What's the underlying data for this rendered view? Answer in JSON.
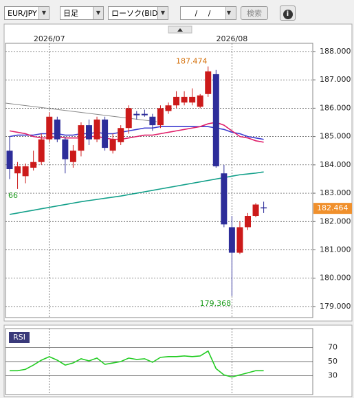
{
  "toolbar": {
    "symbol": "EUR/JPY",
    "period": "日足",
    "chart_type": "ローソク(BID)",
    "date": "/ /",
    "search": "検索",
    "info": "i"
  },
  "chart_data": [
    {
      "type": "candlestick",
      "categories": [
        null,
        null,
        null,
        null,
        null,
        "2026/07",
        null,
        null,
        null,
        null,
        null,
        null,
        null,
        null,
        null,
        null,
        null,
        null,
        null,
        null,
        null,
        null,
        null,
        null,
        null,
        null,
        null,
        null,
        "2026/08",
        null,
        null,
        null,
        null
      ],
      "open": [
        184.5,
        183.7,
        183.6,
        183.9,
        184.1,
        184.9,
        185.6,
        184.9,
        184.1,
        184.5,
        185.4,
        184.9,
        185.6,
        184.5,
        184.8,
        185.3,
        185.8,
        185.8,
        185.7,
        185.4,
        185.9,
        186.1,
        186.2,
        186.2,
        186.05,
        186.5,
        187.2,
        183.7,
        181.8,
        180.9,
        181.8,
        182.2,
        182.5
      ],
      "high": [
        185.0,
        184.1,
        184.05,
        184.5,
        185.1,
        185.85,
        185.7,
        185.0,
        184.7,
        185.5,
        185.6,
        185.7,
        185.7,
        185.1,
        185.4,
        186.1,
        185.9,
        185.95,
        185.8,
        186.1,
        186.2,
        186.6,
        186.6,
        186.7,
        186.5,
        187.474,
        187.35,
        184.0,
        182.2,
        182.0,
        182.3,
        182.65,
        182.7
      ],
      "low": [
        183.5,
        183.15,
        183.35,
        183.8,
        184.0,
        184.8,
        184.8,
        183.7,
        183.9,
        184.3,
        184.7,
        184.8,
        184.5,
        184.4,
        184.7,
        185.1,
        185.6,
        185.7,
        185.2,
        185.3,
        185.8,
        186.0,
        186.1,
        186.1,
        186.0,
        186.4,
        183.9,
        181.8,
        179.368,
        180.85,
        181.7,
        182.15,
        182.3
      ],
      "close": [
        183.85,
        183.95,
        183.95,
        184.1,
        184.9,
        185.7,
        184.9,
        184.2,
        184.5,
        185.4,
        184.9,
        185.6,
        184.6,
        184.9,
        185.3,
        186.0,
        185.75,
        185.75,
        185.4,
        186.0,
        186.1,
        186.4,
        186.4,
        186.4,
        186.45,
        187.3,
        183.95,
        181.9,
        180.9,
        181.8,
        182.2,
        182.6,
        182.464
      ],
      "up_color": "#cc1a1a",
      "down_color": "#2d2d9a",
      "overlays": [
        {
          "color": "#3c3cd0",
          "values": [
            185.0,
            185.05,
            185.05,
            185.05,
            185.1,
            185.1,
            185.1,
            185.05,
            185.05,
            185.1,
            185.1,
            185.15,
            185.1,
            185.1,
            185.15,
            185.2,
            185.25,
            185.3,
            185.3,
            185.35,
            185.35,
            185.35,
            185.35,
            185.35,
            185.35,
            185.35,
            185.3,
            185.25,
            185.15,
            185.1,
            185.0,
            184.95,
            184.9
          ]
        },
        {
          "color": "#e0206a",
          "values": [
            185.2,
            185.15,
            185.1,
            185.0,
            184.95,
            184.95,
            185.0,
            184.95,
            184.95,
            184.95,
            185.0,
            185.0,
            184.95,
            184.9,
            184.9,
            184.95,
            185.0,
            185.05,
            185.05,
            185.1,
            185.15,
            185.2,
            185.25,
            185.3,
            185.35,
            185.45,
            185.5,
            185.4,
            185.2,
            185.0,
            184.95,
            184.85,
            184.8
          ]
        },
        {
          "color": "#13a08a",
          "values": [
            182.25,
            182.3,
            182.35,
            182.4,
            182.45,
            182.5,
            182.55,
            182.6,
            182.65,
            182.7,
            182.74,
            182.78,
            182.82,
            182.86,
            182.9,
            182.95,
            183.0,
            183.05,
            183.1,
            183.15,
            183.2,
            183.25,
            183.3,
            183.35,
            183.4,
            183.45,
            183.5,
            183.55,
            183.6,
            183.65,
            183.68,
            183.71,
            183.75
          ]
        }
      ],
      "ylim": [
        178.61,
        188.29
      ],
      "yticks": [
        {
          "value": 179,
          "label": "179.000"
        },
        {
          "value": 180,
          "label": "180.000"
        },
        {
          "value": 181,
          "label": "181.000"
        },
        {
          "value": 182,
          "label": "182.000"
        },
        {
          "value": 183,
          "label": "183.000"
        },
        {
          "value": 184,
          "label": "184.000"
        },
        {
          "value": 185,
          "label": "185.000"
        },
        {
          "value": 186,
          "label": "186.000"
        },
        {
          "value": 187,
          "label": "187.000"
        },
        {
          "value": 188,
          "label": "188.000"
        }
      ],
      "grid": true,
      "high_label": 187.474,
      "low_label": 179.368,
      "last_price": 182.464,
      "last_price_color": "#f0902c",
      "side_note": "66"
    },
    {
      "type": "line",
      "label": "RSI",
      "color": "#22cc22",
      "values": [
        37,
        37,
        39,
        45,
        52,
        57,
        52,
        45,
        48,
        54,
        51,
        55,
        46,
        48,
        50,
        55,
        53,
        54,
        49,
        56,
        57,
        57,
        58,
        57,
        58,
        65,
        40,
        31,
        28,
        31,
        34,
        37,
        37
      ],
      "ylim": [
        3,
        97
      ],
      "yticks": [
        30,
        50,
        70
      ],
      "grid": true
    }
  ]
}
